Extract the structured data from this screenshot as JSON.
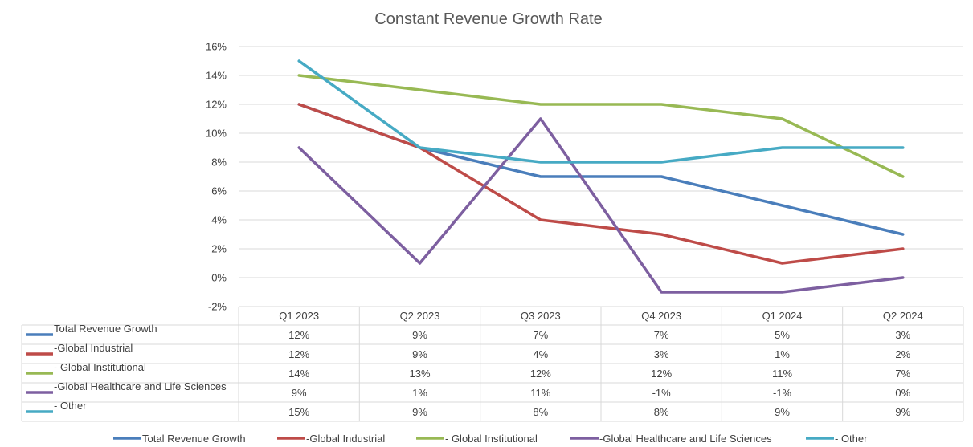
{
  "chart_data": {
    "type": "line",
    "title": "Constant Revenue Growth Rate",
    "categories": [
      "Q1 2023",
      "Q2 2023",
      "Q3 2023",
      "Q4 2023",
      "Q1 2024",
      "Q2 2024"
    ],
    "y_ticks": [
      "16%",
      "14%",
      "12%",
      "10%",
      "8%",
      "6%",
      "4%",
      "2%",
      "0%",
      "-2%"
    ],
    "ylim": [
      -2,
      16
    ],
    "y_step": 2,
    "grid": true,
    "legend_position": "bottom",
    "data_table": true,
    "series": [
      {
        "name": "Total Revenue Growth",
        "color": "#4a7ebb",
        "values": [
          12,
          9,
          7,
          7,
          5,
          3
        ],
        "labels": [
          "12%",
          "9%",
          "7%",
          "7%",
          "5%",
          "3%"
        ]
      },
      {
        "name": "-Global Industrial",
        "color": "#be4b48",
        "values": [
          12,
          9,
          4,
          3,
          1,
          2
        ],
        "labels": [
          "12%",
          "9%",
          "4%",
          "3%",
          "1%",
          "2%"
        ]
      },
      {
        "name": "- Global Institutional",
        "color": "#98b954",
        "values": [
          14,
          13,
          12,
          12,
          11,
          7
        ],
        "labels": [
          "14%",
          "13%",
          "12%",
          "12%",
          "11%",
          "7%"
        ]
      },
      {
        "name": "-Global Healthcare and Life Sciences",
        "color": "#7d5fa0",
        "values": [
          9,
          1,
          11,
          -1,
          -1,
          0
        ],
        "labels": [
          "9%",
          "1%",
          "11%",
          "-1%",
          "-1%",
          "0%"
        ]
      },
      {
        "name": "- Other",
        "color": "#46aac4",
        "values": [
          15,
          9,
          8,
          8,
          9,
          9
        ],
        "labels": [
          "15%",
          "9%",
          "8%",
          "8%",
          "9%",
          "9%"
        ]
      }
    ]
  }
}
